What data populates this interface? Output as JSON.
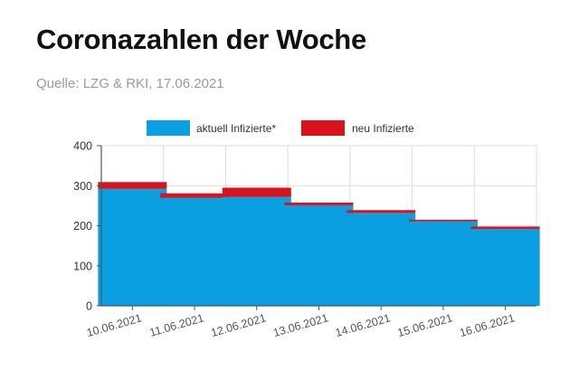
{
  "header": {
    "title": "Coronazahlen der Woche",
    "subtitle": "Quelle: LZG & RKI, 17.06.2021"
  },
  "colors": {
    "aktuell": "#0a9fe0",
    "neu": "#d9121b",
    "grid": "#dddddd",
    "axis": "#555555"
  },
  "chart_data": {
    "type": "bar",
    "stacked": true,
    "title": "",
    "xlabel": "",
    "ylabel": "",
    "ylim": [
      0,
      400
    ],
    "yticks": [
      0,
      100,
      200,
      300,
      400
    ],
    "grid": true,
    "legend_position": "top-center",
    "categories": [
      "10.06.2021",
      "11.06.2021",
      "12.06.2021",
      "13.06.2021",
      "14.06.2021",
      "15.06.2021",
      "16.06.2021"
    ],
    "series": [
      {
        "name": "aktuell Infizierte*",
        "color_key": "aktuell",
        "values": [
          292,
          270,
          272,
          251,
          232,
          211,
          192
        ]
      },
      {
        "name": "neu Infizierte",
        "color_key": "neu",
        "values": [
          17,
          11,
          23,
          7,
          7,
          4,
          6
        ]
      }
    ]
  }
}
